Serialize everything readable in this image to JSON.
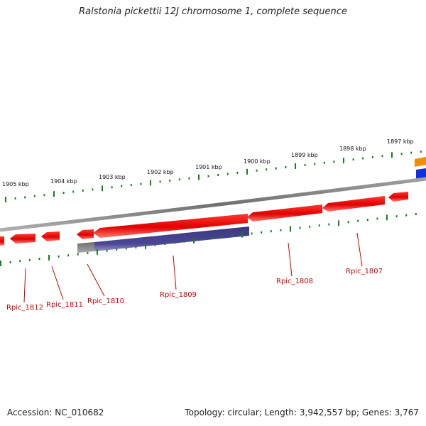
{
  "title": "Ralstonia pickettii 12J chromosome 1, complete sequence",
  "footer": {
    "accession": "Accession: NC_010682",
    "topology": "Topology: circular; Length: 3,942,557 bp; Genes: 3,767"
  },
  "scale": {
    "labels": [
      "1905 kbp",
      "1904 kbp",
      "1903 kbp",
      "1902 kbp",
      "1901 kbp",
      "1900 kbp",
      "1899 kbp",
      "1898 kbp",
      "1897 kbp"
    ]
  },
  "genes": [
    {
      "label": "Rpic_1812",
      "strand": "-",
      "color": "#e8211b"
    },
    {
      "label": "Rpic_1811",
      "strand": "-",
      "color": "#e8211b"
    },
    {
      "label": "Rpic_1810",
      "strand": "-",
      "color": "#e8211b"
    },
    {
      "label": "Rpic_1809",
      "strand": "-",
      "color": "#e8211b"
    },
    {
      "label": "Rpic_1808",
      "strand": "-",
      "color": "#e8211b"
    },
    {
      "label": "Rpic_1807",
      "strand": "-",
      "color": "#e8211b"
    }
  ],
  "colors": {
    "backbone": "#8a8a8a",
    "tick": "#1f7a1f",
    "forward_orange": "#f08c00",
    "forward_blue": "#1030e0",
    "feature_purple": "#46428c",
    "label": "#cc0000"
  }
}
